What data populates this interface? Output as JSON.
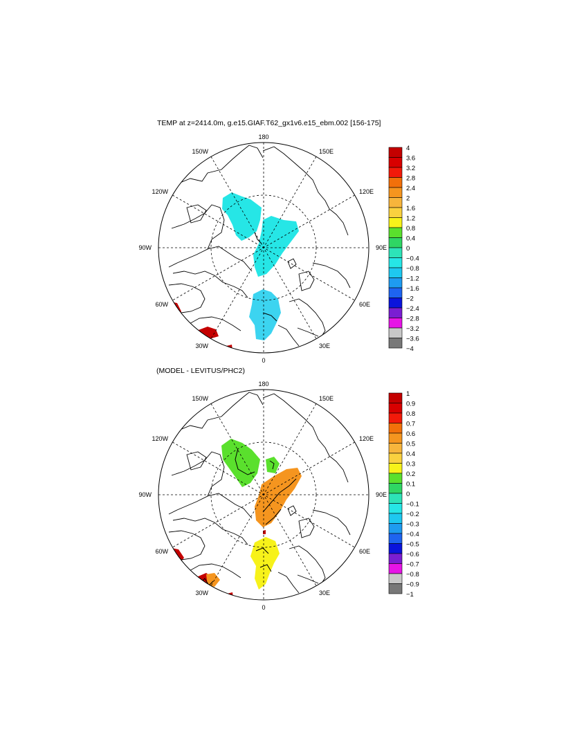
{
  "panels": [
    {
      "title": "TEMP at z=2414.0m, g.e15.GIAF.T62_gx1v6.e15_ebm.002 [156-175]",
      "lon_labels": {
        "n": "180",
        "s": "0",
        "w": "90W",
        "e": "90E",
        "nw1": "150W",
        "nw2": "120W",
        "ne1": "150E",
        "ne2": "120E",
        "sw1": "60W",
        "sw2": "30W",
        "se1": "60E",
        "se2": "30E"
      },
      "colorbar_labels": [
        "4",
        "3.6",
        "3.2",
        "2.8",
        "2.4",
        "2",
        "1.6",
        "1.2",
        "0.8",
        "0.4",
        "0",
        "−0.4",
        "−0.8",
        "−1.2",
        "−1.6",
        "−2",
        "−2.4",
        "−2.8",
        "−3.2",
        "−3.6",
        "−4"
      ]
    },
    {
      "title": "(MODEL - LEVITUS/PHC2)",
      "lon_labels": {
        "n": "180",
        "s": "0",
        "w": "90W",
        "e": "90E",
        "nw1": "150W",
        "nw2": "120W",
        "ne1": "150E",
        "ne2": "120E",
        "sw1": "60W",
        "sw2": "30W",
        "se1": "60E",
        "se2": "30E"
      },
      "colorbar_labels": [
        "1",
        "0.9",
        "0.8",
        "0.7",
        "0.6",
        "0.5",
        "0.4",
        "0.3",
        "0.2",
        "0.1",
        "0",
        "−0.1",
        "−0.2",
        "−0.3",
        "−0.4",
        "−0.5",
        "−0.6",
        "−0.7",
        "−0.8",
        "−0.9",
        "−1"
      ]
    }
  ],
  "colors": {
    "palette": [
      "#c40000",
      "#d80000",
      "#f21a0a",
      "#f2700a",
      "#f5951f",
      "#f7b53c",
      "#fad13f",
      "#f7f21a",
      "#5ae02d",
      "#2fd664",
      "#2de3b8",
      "#26e6e6",
      "#1ec8f0",
      "#1e9bf0",
      "#1e64f0",
      "#0a14dc",
      "#7a1ed2",
      "#e614e6",
      "#c8c8c8",
      "#787878"
    ],
    "cyan": "#26e6e6",
    "light_blue": "#3cd4f0",
    "green": "#5ae02d",
    "orange": "#f5951f",
    "yellow": "#f7f21a",
    "red": "#c40000"
  }
}
